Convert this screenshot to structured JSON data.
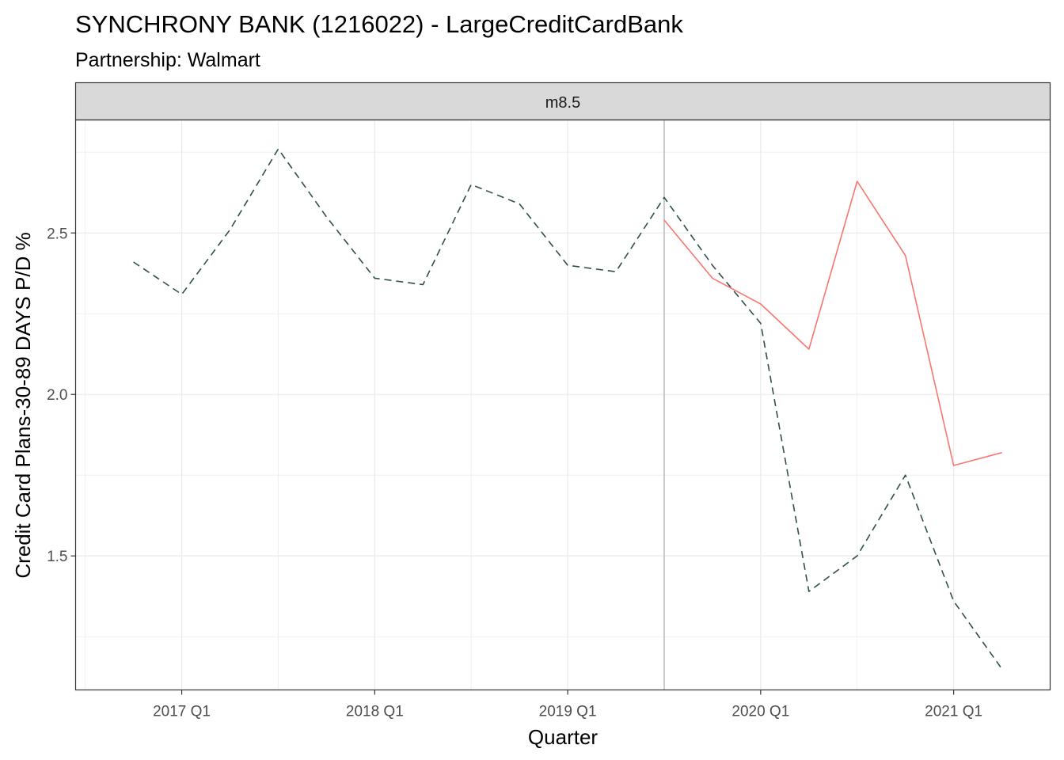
{
  "title": "SYNCHRONY BANK (1216022) - LargeCreditCardBank",
  "subtitle": "Partnership: Walmart",
  "chart_data": {
    "type": "line",
    "facet_label": "m8.5",
    "xlabel": "Quarter",
    "ylabel": "Credit Card Plans-30-89 DAYS P/D %",
    "x_tick_labels": [
      "2017 Q1",
      "2018 Q1",
      "2019 Q1",
      "2020 Q1",
      "2021 Q1"
    ],
    "x_tick_positions": [
      2017.0,
      2018.0,
      2019.0,
      2020.0,
      2021.0
    ],
    "xlim": [
      2016.45,
      2021.5
    ],
    "y_ticks": [
      1.5,
      2.0,
      2.5
    ],
    "y_tick_labels": [
      "1.5",
      "2.0",
      "2.5"
    ],
    "ylim": [
      1.085,
      2.85
    ],
    "vline_x": 2019.5,
    "grid": true,
    "series": [
      {
        "color": "#2f4f4f",
        "linestyle": "dashed",
        "points": [
          [
            2016.75,
            2.41
          ],
          [
            2017.0,
            2.31
          ],
          [
            2017.25,
            2.51
          ],
          [
            2017.5,
            2.76
          ],
          [
            2017.75,
            2.55
          ],
          [
            2018.0,
            2.36
          ],
          [
            2018.25,
            2.34
          ],
          [
            2018.5,
            2.65
          ],
          [
            2018.75,
            2.59
          ],
          [
            2019.0,
            2.4
          ],
          [
            2019.25,
            2.38
          ],
          [
            2019.5,
            2.61
          ],
          [
            2019.75,
            2.4
          ],
          [
            2020.0,
            2.22
          ],
          [
            2020.25,
            1.39
          ],
          [
            2020.5,
            1.5
          ],
          [
            2020.75,
            1.75
          ],
          [
            2021.0,
            1.36
          ],
          [
            2021.25,
            1.15
          ]
        ]
      },
      {
        "color": "#f8766d",
        "linestyle": "solid",
        "points": [
          [
            2019.5,
            2.54
          ],
          [
            2019.75,
            2.36
          ],
          [
            2020.0,
            2.28
          ],
          [
            2020.25,
            2.14
          ],
          [
            2020.5,
            2.66
          ],
          [
            2020.75,
            2.43
          ],
          [
            2021.0,
            1.78
          ],
          [
            2021.25,
            1.82
          ]
        ]
      }
    ]
  }
}
